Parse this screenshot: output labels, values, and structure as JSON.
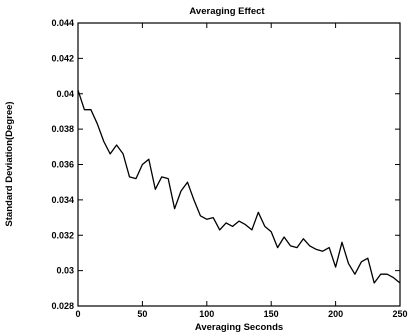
{
  "chart_data": {
    "type": "line",
    "title": "Averaging Effect",
    "xlabel": "Averaging Seconds",
    "ylabel": "Standard Deviation(Degree)",
    "xlim": [
      0,
      250
    ],
    "ylim": [
      0.028,
      0.044
    ],
    "xticks": [
      {
        "value": 0,
        "label": "0"
      },
      {
        "value": 50,
        "label": "50"
      },
      {
        "value": 100,
        "label": "100"
      },
      {
        "value": 150,
        "label": "150"
      },
      {
        "value": 200,
        "label": "200"
      },
      {
        "value": 250,
        "label": "250"
      }
    ],
    "yticks": [
      {
        "value": 0.028,
        "label": "0.028"
      },
      {
        "value": 0.03,
        "label": "0.03"
      },
      {
        "value": 0.032,
        "label": "0.032"
      },
      {
        "value": 0.034,
        "label": "0.034"
      },
      {
        "value": 0.036,
        "label": "0.036"
      },
      {
        "value": 0.038,
        "label": "0.038"
      },
      {
        "value": 0.04,
        "label": "0.04"
      },
      {
        "value": 0.042,
        "label": "0.042"
      },
      {
        "value": 0.044,
        "label": "0.044"
      }
    ],
    "grid": false,
    "series": [
      {
        "color": "#000000",
        "x": [
          0,
          5,
          10,
          15,
          20,
          25,
          30,
          35,
          40,
          45,
          50,
          55,
          60,
          65,
          70,
          75,
          80,
          85,
          90,
          95,
          100,
          105,
          110,
          115,
          120,
          125,
          130,
          135,
          140,
          145,
          150,
          155,
          160,
          165,
          170,
          175,
          180,
          185,
          190,
          195,
          200,
          205,
          210,
          215,
          220,
          225,
          230,
          235,
          240,
          245,
          250
        ],
        "y": [
          0.0402,
          0.0391,
          0.0391,
          0.0383,
          0.0373,
          0.0366,
          0.0371,
          0.0366,
          0.0353,
          0.0352,
          0.036,
          0.0363,
          0.0346,
          0.0353,
          0.0352,
          0.0335,
          0.0345,
          0.035,
          0.034,
          0.0331,
          0.0329,
          0.033,
          0.0323,
          0.0327,
          0.0325,
          0.0328,
          0.0326,
          0.0323,
          0.0333,
          0.0325,
          0.0322,
          0.0313,
          0.0319,
          0.0314,
          0.0313,
          0.0318,
          0.0314,
          0.0312,
          0.0311,
          0.0313,
          0.0302,
          0.0316,
          0.0304,
          0.0298,
          0.0305,
          0.0307,
          0.0293,
          0.0298,
          0.0298,
          0.0296,
          0.0293
        ]
      }
    ]
  }
}
